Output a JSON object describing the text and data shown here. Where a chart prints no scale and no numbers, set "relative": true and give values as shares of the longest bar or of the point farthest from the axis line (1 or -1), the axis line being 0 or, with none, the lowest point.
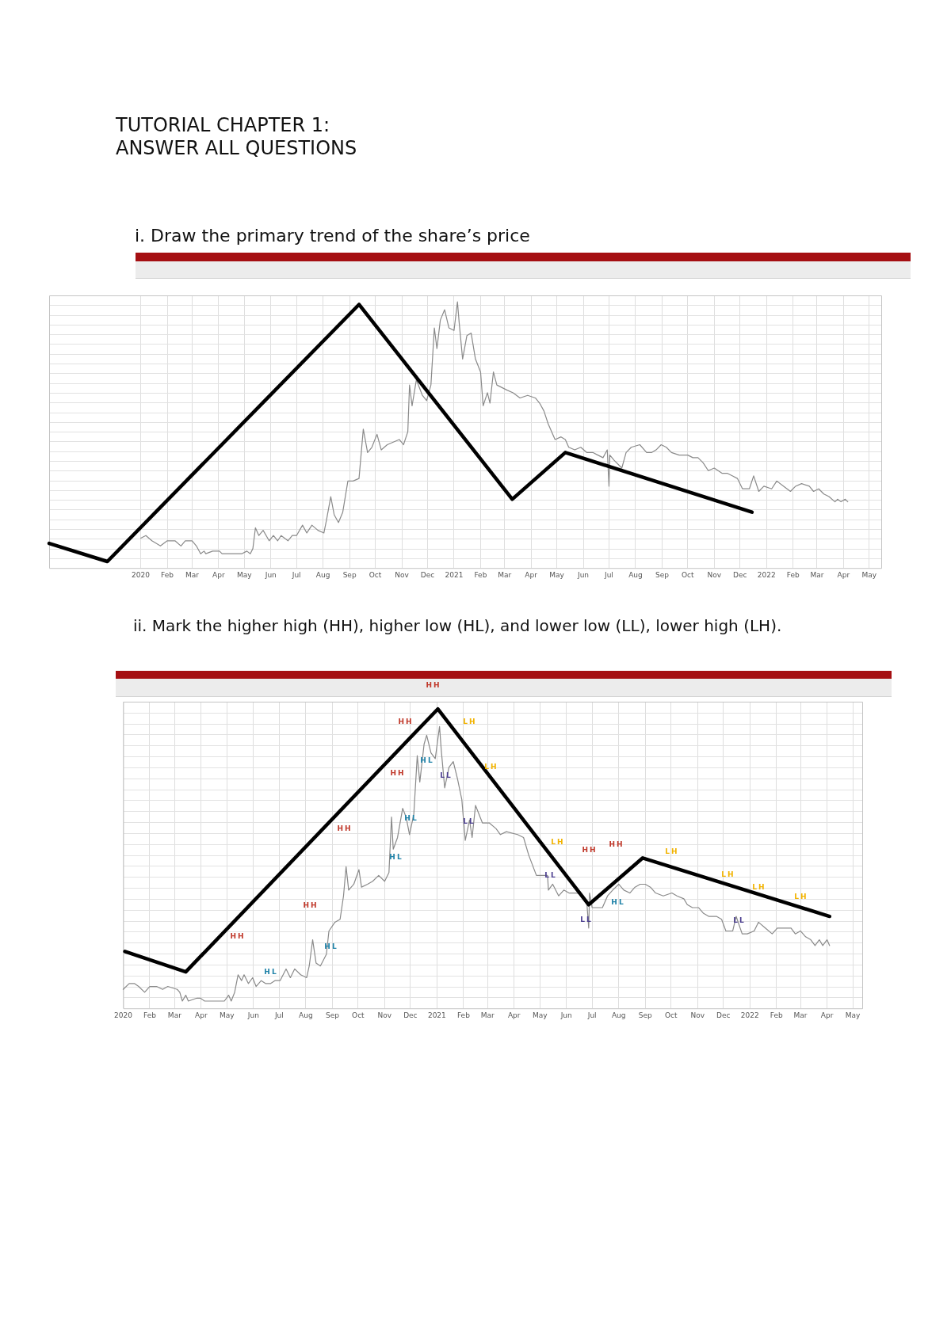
{
  "chart_data": [
    {
      "type": "line",
      "title": "TUTORIAL CHAPTER 1: ANSWER ALL QUESTIONS",
      "subtitle": "i. Draw the primary trend of the share’s price",
      "relative": true,
      "grid": true,
      "marker": "none",
      "xlim": [
        "2019-09-16",
        "2022-05-16"
      ],
      "xticks": [
        {
          "value": "2020-01",
          "label": "2020"
        },
        {
          "value": "2020-02",
          "label": "Feb"
        },
        {
          "value": "2020-03",
          "label": "Mar"
        },
        {
          "value": "2020-04",
          "label": "Apr"
        },
        {
          "value": "2020-05",
          "label": "May"
        },
        {
          "value": "2020-06",
          "label": "Jun"
        },
        {
          "value": "2020-07",
          "label": "Jul"
        },
        {
          "value": "2020-08",
          "label": "Aug"
        },
        {
          "value": "2020-09",
          "label": "Sep"
        },
        {
          "value": "2020-10",
          "label": "Oct"
        },
        {
          "value": "2020-11",
          "label": "Nov"
        },
        {
          "value": "2020-12",
          "label": "Dec"
        },
        {
          "value": "2021-01",
          "label": "2021"
        },
        {
          "value": "2021-02",
          "label": "Feb"
        },
        {
          "value": "2021-03",
          "label": "Mar"
        },
        {
          "value": "2021-04",
          "label": "Apr"
        },
        {
          "value": "2021-05",
          "label": "May"
        },
        {
          "value": "2021-06",
          "label": "Jun"
        },
        {
          "value": "2021-07",
          "label": "Jul"
        },
        {
          "value": "2021-08",
          "label": "Aug"
        },
        {
          "value": "2021-09",
          "label": "Sep"
        },
        {
          "value": "2021-10",
          "label": "Oct"
        },
        {
          "value": "2021-11",
          "label": "Nov"
        },
        {
          "value": "2021-12",
          "label": "Dec"
        },
        {
          "value": "2022-01",
          "label": "2022"
        },
        {
          "value": "2022-02",
          "label": "Feb"
        },
        {
          "value": "2022-03",
          "label": "Mar"
        },
        {
          "value": "2022-04",
          "label": "Apr"
        },
        {
          "value": "2022-05",
          "label": "May"
        }
      ],
      "series": [
        {
          "color": "#8a8a8a",
          "x": [
            "2020-01-01",
            "2020-01-07",
            "2020-01-14",
            "2020-01-24",
            "2020-02-01",
            "2020-02-10",
            "2020-02-17",
            "2020-02-22",
            "2020-03-01",
            "2020-03-06",
            "2020-03-11",
            "2020-03-15",
            "2020-03-17",
            "2020-03-25",
            "2020-04-02",
            "2020-04-05",
            "2020-04-28",
            "2020-05-04",
            "2020-05-08",
            "2020-05-11",
            "2020-05-14",
            "2020-05-18",
            "2020-05-23",
            "2020-05-30",
            "2020-06-04",
            "2020-06-09",
            "2020-06-13",
            "2020-06-21",
            "2020-06-26",
            "2020-07-01",
            "2020-07-08",
            "2020-07-13",
            "2020-07-19",
            "2020-07-26",
            "2020-08-02",
            "2020-08-05",
            "2020-08-10",
            "2020-08-14",
            "2020-08-19",
            "2020-08-24",
            "2020-08-30",
            "2020-09-05",
            "2020-09-12",
            "2020-09-17",
            "2020-09-22",
            "2020-09-27",
            "2020-10-03",
            "2020-10-08",
            "2020-10-15",
            "2020-10-22",
            "2020-10-29",
            "2020-11-03",
            "2020-11-08",
            "2020-11-10",
            "2020-11-13",
            "2020-11-18",
            "2020-11-25",
            "2020-11-30",
            "2020-12-05",
            "2020-12-09",
            "2020-12-12",
            "2020-12-16",
            "2020-12-21",
            "2020-12-26",
            "2021-01-01",
            "2021-01-05",
            "2021-01-07",
            "2021-01-11",
            "2021-01-16",
            "2021-01-21",
            "2021-01-26",
            "2021-02-01",
            "2021-02-04",
            "2021-02-09",
            "2021-02-12",
            "2021-02-16",
            "2021-02-20",
            "2021-02-26",
            "2021-03-04",
            "2021-03-11",
            "2021-03-19",
            "2021-03-28",
            "2021-04-06",
            "2021-04-11",
            "2021-04-16",
            "2021-04-21",
            "2021-04-29",
            "2021-05-06",
            "2021-05-11",
            "2021-05-15",
            "2021-05-22",
            "2021-05-29",
            "2021-06-05",
            "2021-06-12",
            "2021-06-18",
            "2021-06-24",
            "2021-06-29",
            "2021-07-01",
            "2021-07-02",
            "2021-07-07",
            "2021-07-16",
            "2021-07-21",
            "2021-07-27",
            "2021-08-06",
            "2021-08-14",
            "2021-08-20",
            "2021-08-25",
            "2021-08-31",
            "2021-09-06",
            "2021-09-12",
            "2021-09-21",
            "2021-10-01",
            "2021-10-07",
            "2021-10-13",
            "2021-10-19",
            "2021-10-25",
            "2021-11-01",
            "2021-11-10",
            "2021-11-16",
            "2021-11-22",
            "2021-11-28",
            "2021-12-04",
            "2021-12-12",
            "2021-12-17",
            "2021-12-23",
            "2021-12-29",
            "2022-01-07",
            "2022-01-13",
            "2022-01-21",
            "2022-01-29",
            "2022-02-04",
            "2022-02-11",
            "2022-02-20",
            "2022-02-25",
            "2022-03-03",
            "2022-03-09",
            "2022-03-15",
            "2022-03-22",
            "2022-03-25",
            "2022-03-29",
            "2022-04-03",
            "2022-04-06"
          ],
          "values": [
            0.09,
            0.1,
            0.08,
            0.06,
            0.08,
            0.08,
            0.06,
            0.08,
            0.08,
            0.06,
            0.03,
            0.04,
            0.03,
            0.04,
            0.04,
            0.03,
            0.03,
            0.04,
            0.03,
            0.05,
            0.13,
            0.1,
            0.12,
            0.08,
            0.1,
            0.08,
            0.1,
            0.08,
            0.1,
            0.1,
            0.14,
            0.11,
            0.14,
            0.12,
            0.11,
            0.16,
            0.25,
            0.18,
            0.15,
            0.19,
            0.31,
            0.31,
            0.32,
            0.51,
            0.42,
            0.44,
            0.49,
            0.43,
            0.45,
            0.46,
            0.47,
            0.45,
            0.5,
            0.68,
            0.6,
            0.7,
            0.64,
            0.62,
            0.68,
            0.9,
            0.82,
            0.93,
            0.97,
            0.9,
            0.89,
            1.0,
            0.92,
            0.78,
            0.87,
            0.88,
            0.78,
            0.73,
            0.6,
            0.65,
            0.61,
            0.73,
            0.68,
            0.67,
            0.66,
            0.65,
            0.63,
            0.64,
            0.63,
            0.61,
            0.58,
            0.53,
            0.47,
            0.48,
            0.47,
            0.44,
            0.43,
            0.44,
            0.42,
            0.42,
            0.41,
            0.4,
            0.43,
            0.29,
            0.41,
            0.39,
            0.36,
            0.42,
            0.44,
            0.45,
            0.42,
            0.42,
            0.43,
            0.45,
            0.44,
            0.42,
            0.41,
            0.41,
            0.4,
            0.4,
            0.38,
            0.35,
            0.36,
            0.34,
            0.34,
            0.33,
            0.32,
            0.28,
            0.28,
            0.33,
            0.27,
            0.29,
            0.28,
            0.31,
            0.29,
            0.27,
            0.29,
            0.3,
            0.29,
            0.27,
            0.28,
            0.26,
            0.25,
            0.23,
            0.24,
            0.23,
            0.24,
            0.23
          ]
        },
        {
          "color": "#000000",
          "x": [
            "2019-09-16",
            "2019-11-23",
            "2020-09-12",
            "2021-03-10",
            "2021-05-11",
            "2021-12-15"
          ],
          "values": [
            0.07,
            0.0,
            0.99,
            0.24,
            0.42,
            0.19
          ]
        }
      ]
    },
    {
      "type": "line",
      "title": "ii. Mark the higher high (HH), higher low (HL), and lower low (LL), lower high (LH).",
      "relative": true,
      "grid": true,
      "marker": "none",
      "xlim": [
        "2020-01-01",
        "2022-05-13"
      ],
      "xticks": [
        {
          "value": "2020-01",
          "label": "2020"
        },
        {
          "value": "2020-02",
          "label": "Feb"
        },
        {
          "value": "2020-03",
          "label": "Mar"
        },
        {
          "value": "2020-04",
          "label": "Apr"
        },
        {
          "value": "2020-05",
          "label": "May"
        },
        {
          "value": "2020-06",
          "label": "Jun"
        },
        {
          "value": "2020-07",
          "label": "Jul"
        },
        {
          "value": "2020-08",
          "label": "Aug"
        },
        {
          "value": "2020-09",
          "label": "Sep"
        },
        {
          "value": "2020-10",
          "label": "Oct"
        },
        {
          "value": "2020-11",
          "label": "Nov"
        },
        {
          "value": "2020-12",
          "label": "Dec"
        },
        {
          "value": "2021-01",
          "label": "2021"
        },
        {
          "value": "2021-02",
          "label": "Feb"
        },
        {
          "value": "2021-03",
          "label": "Mar"
        },
        {
          "value": "2021-04",
          "label": "Apr"
        },
        {
          "value": "2021-05",
          "label": "May"
        },
        {
          "value": "2021-06",
          "label": "Jun"
        },
        {
          "value": "2021-07",
          "label": "Jul"
        },
        {
          "value": "2021-08",
          "label": "Aug"
        },
        {
          "value": "2021-09",
          "label": "Sep"
        },
        {
          "value": "2021-10",
          "label": "Oct"
        },
        {
          "value": "2021-11",
          "label": "Nov"
        },
        {
          "value": "2021-12",
          "label": "Dec"
        },
        {
          "value": "2022-01",
          "label": "2022"
        },
        {
          "value": "2022-02",
          "label": "Feb"
        },
        {
          "value": "2022-03",
          "label": "Mar"
        },
        {
          "value": "2022-04",
          "label": "Apr"
        },
        {
          "value": "2022-05",
          "label": "May"
        }
      ],
      "series": [
        {
          "color": "#8a8a8a",
          "x": [
            "2020-01-01",
            "2020-01-08",
            "2020-01-14",
            "2020-01-19",
            "2020-01-26",
            "2020-02-01",
            "2020-02-09",
            "2020-02-16",
            "2020-02-22",
            "2020-03-04",
            "2020-03-07",
            "2020-03-10",
            "2020-03-14",
            "2020-03-17",
            "2020-03-27",
            "2020-03-31",
            "2020-04-05",
            "2020-04-28",
            "2020-05-03",
            "2020-05-06",
            "2020-05-10",
            "2020-05-14",
            "2020-05-18",
            "2020-05-21",
            "2020-05-26",
            "2020-05-31",
            "2020-06-04",
            "2020-06-10",
            "2020-06-15",
            "2020-06-21",
            "2020-06-26",
            "2020-07-02",
            "2020-07-09",
            "2020-07-14",
            "2020-07-19",
            "2020-07-26",
            "2020-08-02",
            "2020-08-05",
            "2020-08-09",
            "2020-08-13",
            "2020-08-18",
            "2020-08-25",
            "2020-08-28",
            "2020-09-04",
            "2020-09-10",
            "2020-09-14",
            "2020-09-17",
            "2020-09-20",
            "2020-09-26",
            "2020-10-02",
            "2020-10-05",
            "2020-10-12",
            "2020-10-18",
            "2020-10-25",
            "2020-11-01",
            "2020-11-06",
            "2020-11-09",
            "2020-11-11",
            "2020-11-16",
            "2020-11-22",
            "2020-11-26",
            "2020-11-30",
            "2020-12-05",
            "2020-12-09",
            "2020-12-12",
            "2020-12-17",
            "2020-12-20",
            "2020-12-25",
            "2020-12-30",
            "2021-01-04",
            "2021-01-06",
            "2021-01-10",
            "2021-01-15",
            "2021-01-20",
            "2021-01-25",
            "2021-01-30",
            "2021-02-03",
            "2021-02-08",
            "2021-02-11",
            "2021-02-15",
            "2021-02-19",
            "2021-02-23",
            "2021-03-03",
            "2021-03-11",
            "2021-03-16",
            "2021-03-23",
            "2021-04-05",
            "2021-04-12",
            "2021-04-18",
            "2021-04-27",
            "2021-05-03",
            "2021-05-10",
            "2021-05-11",
            "2021-05-16",
            "2021-05-23",
            "2021-05-29",
            "2021-06-04",
            "2021-06-13",
            "2021-06-21",
            "2021-06-25",
            "2021-06-27",
            "2021-06-28",
            "2021-07-01",
            "2021-07-13",
            "2021-07-19",
            "2021-07-25",
            "2021-08-01",
            "2021-08-07",
            "2021-08-14",
            "2021-08-20",
            "2021-08-26",
            "2021-09-01",
            "2021-09-07",
            "2021-09-13",
            "2021-09-22",
            "2021-10-02",
            "2021-10-08",
            "2021-10-16",
            "2021-10-20",
            "2021-10-26",
            "2021-11-02",
            "2021-11-08",
            "2021-11-14",
            "2021-11-23",
            "2021-11-29",
            "2021-12-04",
            "2021-12-12",
            "2021-12-16",
            "2021-12-23",
            "2021-12-29",
            "2022-01-06",
            "2022-01-11",
            "2022-01-19",
            "2022-01-27",
            "2022-02-02",
            "2022-02-09",
            "2022-02-18",
            "2022-02-23",
            "2022-03-01",
            "2022-03-07",
            "2022-03-13",
            "2022-03-18",
            "2022-03-23",
            "2022-03-27",
            "2022-04-01",
            "2022-04-04"
          ],
          "values": [
            0.04,
            0.06,
            0.06,
            0.05,
            0.03,
            0.05,
            0.05,
            0.04,
            0.05,
            0.04,
            0.03,
            0.0,
            0.02,
            0.0,
            0.01,
            0.01,
            0.0,
            0.0,
            0.02,
            0.0,
            0.03,
            0.09,
            0.07,
            0.09,
            0.06,
            0.08,
            0.05,
            0.07,
            0.06,
            0.06,
            0.07,
            0.07,
            0.11,
            0.08,
            0.11,
            0.09,
            0.08,
            0.12,
            0.21,
            0.13,
            0.12,
            0.16,
            0.24,
            0.27,
            0.28,
            0.36,
            0.46,
            0.38,
            0.4,
            0.45,
            0.39,
            0.4,
            0.41,
            0.43,
            0.41,
            0.44,
            0.63,
            0.52,
            0.56,
            0.66,
            0.63,
            0.57,
            0.64,
            0.84,
            0.75,
            0.88,
            0.91,
            0.85,
            0.83,
            0.94,
            0.86,
            0.73,
            0.8,
            0.82,
            0.76,
            0.69,
            0.55,
            0.62,
            0.56,
            0.67,
            0.64,
            0.61,
            0.61,
            0.59,
            0.57,
            0.58,
            0.57,
            0.56,
            0.5,
            0.43,
            0.43,
            0.43,
            0.38,
            0.4,
            0.36,
            0.38,
            0.37,
            0.37,
            0.36,
            0.33,
            0.25,
            0.37,
            0.32,
            0.32,
            0.36,
            0.38,
            0.4,
            0.38,
            0.37,
            0.39,
            0.4,
            0.4,
            0.39,
            0.37,
            0.36,
            0.37,
            0.36,
            0.35,
            0.33,
            0.32,
            0.32,
            0.3,
            0.29,
            0.29,
            0.28,
            0.24,
            0.24,
            0.29,
            0.23,
            0.23,
            0.24,
            0.27,
            0.25,
            0.23,
            0.25,
            0.25,
            0.25,
            0.23,
            0.24,
            0.22,
            0.21,
            0.19,
            0.21,
            0.19,
            0.21,
            0.19
          ]
        },
        {
          "color": "#000000",
          "x": [
            "2020-01-03",
            "2020-03-14",
            "2021-01-02",
            "2021-06-27",
            "2021-08-29",
            "2022-04-04"
          ],
          "values": [
            0.17,
            0.1,
            1.0,
            0.33,
            0.49,
            0.29
          ]
        }
      ],
      "annotations": [
        "HH",
        "HH",
        "HH",
        "HH",
        "HH",
        "HH",
        "HH",
        "HH",
        "HL",
        "HL",
        "HL",
        "HL",
        "HL",
        "HL",
        "LL",
        "LL",
        "LL",
        "LL",
        "LL",
        "LH",
        "LH",
        "LH",
        "LH",
        "LH",
        "LH",
        "LH"
      ]
    }
  ]
}
